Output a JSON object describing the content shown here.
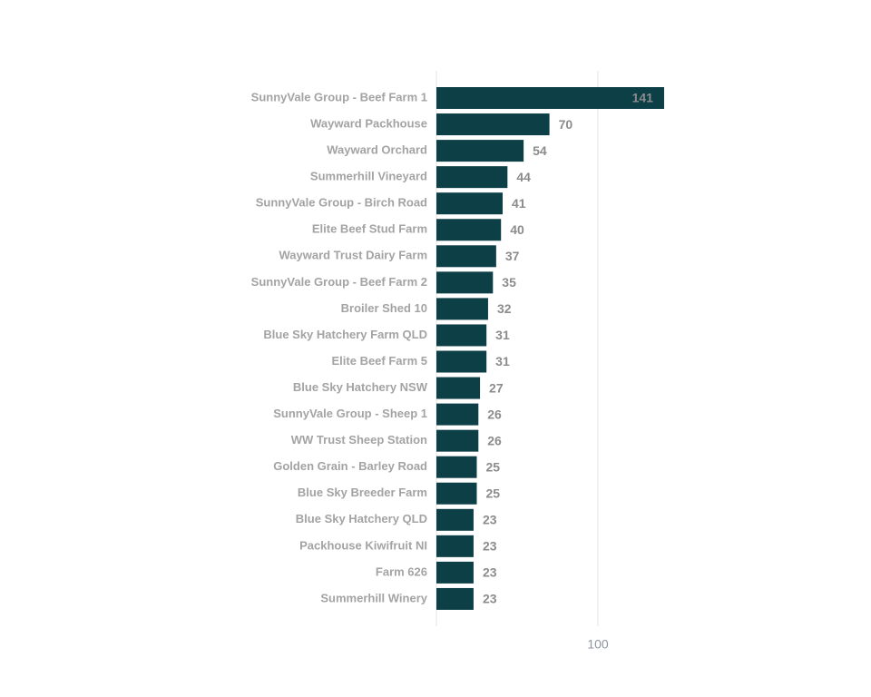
{
  "chart_data": {
    "type": "bar",
    "orientation": "horizontal",
    "categories": [
      "SunnyVale Group - Beef Farm 1",
      "Wayward Packhouse",
      "Wayward Orchard",
      "Summerhill Vineyard",
      "SunnyVale Group - Birch Road",
      "Elite Beef Stud Farm",
      "Wayward Trust Dairy Farm",
      "SunnyVale Group - Beef Farm 2",
      "Broiler Shed 10",
      "Blue Sky Hatchery Farm QLD",
      "Elite Beef Farm 5",
      "Blue Sky Hatchery NSW",
      "SunnyVale Group - Sheep 1",
      "WW Trust Sheep Station",
      "Golden Grain - Barley Road",
      "Blue Sky Breeder Farm",
      "Blue Sky Hatchery QLD",
      "Packhouse Kiwifruit NI",
      "Farm 626",
      "Summerhill Winery"
    ],
    "values": [
      141,
      70,
      54,
      44,
      41,
      40,
      37,
      35,
      32,
      31,
      31,
      27,
      26,
      26,
      25,
      25,
      23,
      23,
      23,
      23
    ],
    "color": "#0d3f47",
    "xlim": [
      0,
      150
    ],
    "xticks": [
      100
    ],
    "grid": true
  }
}
